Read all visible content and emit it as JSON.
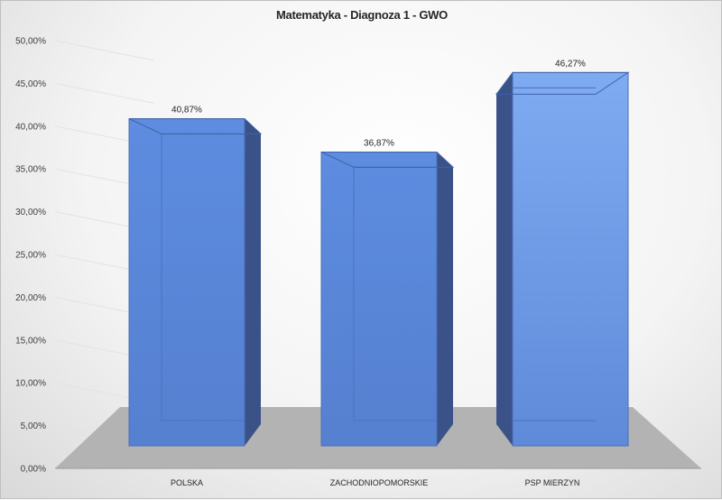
{
  "chart_data": {
    "type": "bar",
    "title": "Matematyka - Diagnoza 1 - GWO",
    "categories": [
      "POLSKA",
      "ZACHODNIOPOMORSKIE",
      "PSP MIERZYN"
    ],
    "values": [
      40.87,
      36.87,
      46.27
    ],
    "data_labels": [
      "40,87%",
      "36,87%",
      "46,27%"
    ],
    "y_ticks": [
      0,
      5,
      10,
      15,
      20,
      25,
      30,
      35,
      40,
      45,
      50
    ],
    "y_tick_labels": [
      "0,00%",
      "5,00%",
      "10,00%",
      "15,00%",
      "20,00%",
      "25,00%",
      "30,00%",
      "35,00%",
      "40,00%",
      "45,00%",
      "50,00%"
    ],
    "ylim": [
      0,
      50
    ],
    "grid": true,
    "style": "3d-column",
    "bar_color": "#5b8bd9",
    "bar_color_light": "#7aa7ee",
    "bar_side_color": "#3a5287",
    "floor_color": "#b3b3b3"
  }
}
